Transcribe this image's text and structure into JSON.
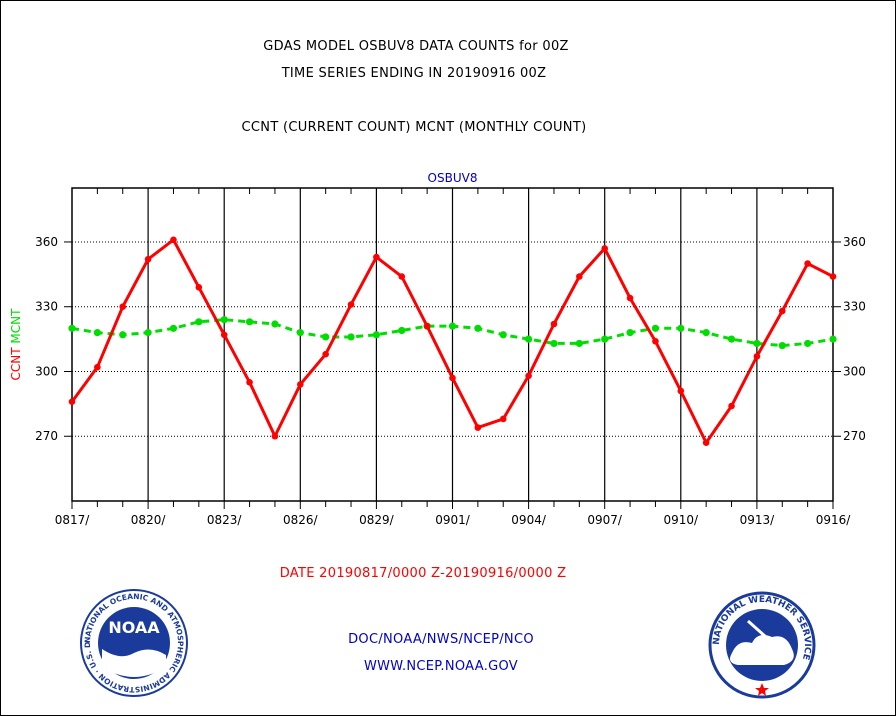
{
  "header": {
    "title_line1": "GDAS MODEL OSBUV8 DATA COUNTS for 00Z",
    "title_line2": "TIME SERIES ENDING IN 20190916 00Z",
    "subtitle": "CCNT (CURRENT COUNT) MCNT (MONTHLY COUNT)"
  },
  "chart_data": {
    "type": "line",
    "panel_label": "OSBUV8",
    "x": [
      "0817",
      "0818",
      "0819",
      "0820",
      "0821",
      "0822",
      "0823",
      "0824",
      "0825",
      "0826",
      "0827",
      "0828",
      "0829",
      "0830",
      "0831",
      "0901",
      "0902",
      "0903",
      "0904",
      "0905",
      "0906",
      "0907",
      "0908",
      "0909",
      "0910",
      "0911",
      "0912",
      "0913",
      "0914",
      "0915",
      "0916"
    ],
    "x_tick_labels": [
      "0817/",
      "0820/",
      "0823/",
      "0826/",
      "0829/",
      "0901/",
      "0904/",
      "0907/",
      "0910/",
      "0913/",
      "0916/"
    ],
    "ylim": [
      240,
      385
    ],
    "yticks": [
      270,
      300,
      330,
      360
    ],
    "ylabel_parts": [
      {
        "text": "CCNT",
        "color": "#ff0000"
      },
      {
        "text": "MCNT",
        "color": "#00dd00"
      }
    ],
    "grid": true,
    "series": [
      {
        "name": "CCNT",
        "color": "#ff0000",
        "values": [
          286,
          302,
          330,
          352,
          361,
          339,
          317,
          295,
          270,
          294,
          308,
          331,
          353,
          344,
          321,
          297,
          274,
          278,
          298,
          322,
          344,
          357,
          334,
          314,
          291,
          267,
          284,
          307,
          328,
          350,
          344
        ]
      },
      {
        "name": "MCNT",
        "color": "#00dd00",
        "values": [
          320,
          318,
          317,
          318,
          320,
          323,
          324,
          323,
          322,
          318,
          316,
          316,
          317,
          319,
          321,
          321,
          320,
          317,
          315,
          313,
          313,
          315,
          318,
          320,
          320,
          318,
          315,
          313,
          312,
          313,
          315
        ]
      }
    ]
  },
  "date_range": "DATE 20190817/0000 Z-20190916/0000 Z",
  "footer": {
    "line1": "DOC/NOAA/NWS/NCEP/NCO",
    "line2": "WWW.NCEP.NOAA.GOV"
  },
  "logos": {
    "noaa": {
      "text": "NOAA",
      "ring_text": "NATIONAL OCEANIC AND ATMOSPHERIC ADMINISTRATION · U.S. DEPARTMENT OF COMMERCE",
      "color": "#1a3b9c"
    },
    "nws": {
      "ring_text": "NATIONAL WEATHER SERVICE",
      "color": "#1a3b9c"
    }
  }
}
